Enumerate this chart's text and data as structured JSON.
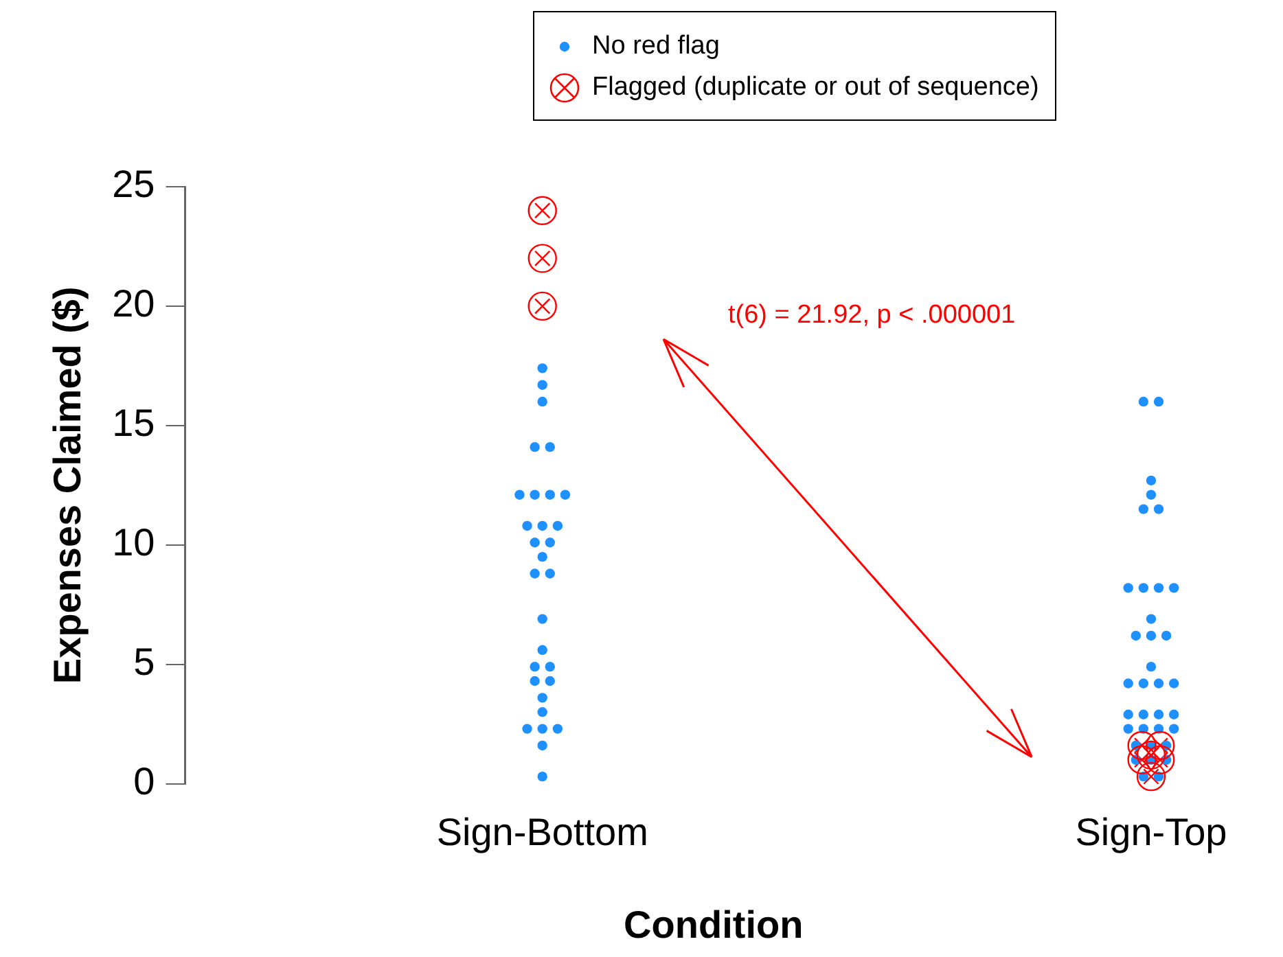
{
  "chart_data": {
    "type": "scatter",
    "xlabel": "Condition",
    "ylabel": "Expenses Claimed ($)",
    "categories": [
      "Sign-Bottom",
      "Sign-Top"
    ],
    "ylim": [
      0,
      25
    ],
    "yticks": [
      0,
      5,
      10,
      15,
      20,
      25
    ],
    "grid": false,
    "legend": "top",
    "annotations": [
      "t(6) = 21.92, p < .000001"
    ],
    "series": [
      {
        "name": "No red flag",
        "color": "#1e90ff",
        "marker": "circle",
        "x": [
          "Sign-Bottom",
          "Sign-Bottom",
          "Sign-Bottom",
          "Sign-Bottom",
          "Sign-Bottom",
          "Sign-Bottom",
          "Sign-Bottom",
          "Sign-Bottom",
          "Sign-Bottom",
          "Sign-Bottom",
          "Sign-Bottom",
          "Sign-Bottom",
          "Sign-Bottom",
          "Sign-Bottom",
          "Sign-Bottom",
          "Sign-Bottom",
          "Sign-Bottom",
          "Sign-Bottom",
          "Sign-Bottom",
          "Sign-Bottom",
          "Sign-Bottom",
          "Sign-Bottom",
          "Sign-Bottom",
          "Sign-Bottom",
          "Sign-Bottom",
          "Sign-Bottom",
          "Sign-Bottom",
          "Sign-Bottom",
          "Sign-Bottom",
          "Sign-Bottom",
          "Sign-Top",
          "Sign-Top",
          "Sign-Top",
          "Sign-Top",
          "Sign-Top",
          "Sign-Top",
          "Sign-Top",
          "Sign-Top",
          "Sign-Top",
          "Sign-Top",
          "Sign-Top",
          "Sign-Top",
          "Sign-Top",
          "Sign-Top",
          "Sign-Top",
          "Sign-Top",
          "Sign-Top",
          "Sign-Top",
          "Sign-Top",
          "Sign-Top",
          "Sign-Top",
          "Sign-Top",
          "Sign-Top",
          "Sign-Top",
          "Sign-Top",
          "Sign-Top",
          "Sign-Top",
          "Sign-Top",
          "Sign-Top",
          "Sign-Top",
          "Sign-Top",
          "Sign-Top",
          "Sign-Top",
          "Sign-Top",
          "Sign-Top"
        ],
        "values": [
          17.4,
          16.7,
          16.0,
          14.1,
          14.1,
          12.1,
          12.1,
          12.1,
          12.1,
          10.8,
          10.8,
          10.8,
          10.1,
          10.1,
          9.5,
          8.8,
          8.8,
          6.9,
          5.6,
          4.9,
          4.9,
          4.3,
          4.3,
          3.6,
          3.0,
          2.3,
          2.3,
          2.3,
          1.6,
          0.3,
          16.0,
          16.0,
          12.7,
          12.1,
          11.5,
          11.5,
          8.2,
          8.2,
          8.2,
          8.2,
          6.9,
          6.2,
          6.2,
          6.2,
          4.9,
          4.2,
          4.2,
          4.2,
          4.2,
          2.9,
          2.9,
          2.9,
          2.9,
          2.3,
          2.3,
          2.3,
          2.3,
          1.0,
          1.0,
          1.0,
          0.3,
          0.3,
          1.6,
          1.6,
          1.6
        ]
      },
      {
        "name": "Flagged (duplicate or out of sequence)",
        "color": "#ff0000",
        "marker": "cross",
        "x": [
          "Sign-Bottom",
          "Sign-Bottom",
          "Sign-Bottom",
          "Sign-Top",
          "Sign-Top",
          "Sign-Top",
          "Sign-Top",
          "Sign-Top",
          "Sign-Top"
        ],
        "values": [
          24,
          22,
          20,
          1.6,
          1.6,
          1.2,
          1.0,
          1.0,
          0.3
        ]
      }
    ]
  }
}
